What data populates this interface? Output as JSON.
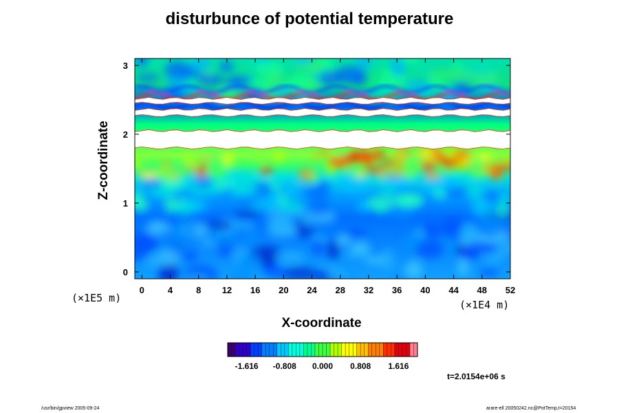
{
  "chart_data": {
    "type": "heatmap",
    "title": "disturbunce of potential temperature",
    "xlabel": "X-coordinate",
    "ylabel": "Z-coordinate",
    "x_unit": "(×1E4 m)",
    "y_unit": "(×1E5 m)",
    "xlim": [
      -1,
      52
    ],
    "ylim": [
      -0.1,
      3.1
    ],
    "x_ticks": [
      "0",
      "4",
      "8",
      "12",
      "16",
      "20",
      "24",
      "28",
      "32",
      "36",
      "40",
      "44",
      "48",
      "52"
    ],
    "y_ticks": [
      "0",
      "1",
      "2",
      "3"
    ],
    "colorbar": {
      "ticks": [
        "-1.616",
        "-0.808",
        "0.000",
        "0.808",
        "1.616"
      ],
      "colors": [
        "#3a0070",
        "#2f00c8",
        "#0040ff",
        "#0080ff",
        "#00c8ff",
        "#00ffe0",
        "#00ff90",
        "#40ff40",
        "#b0ff00",
        "#ffff00",
        "#ffc000",
        "#ff8000",
        "#ff3000",
        "#e00010",
        "#ff8090"
      ]
    },
    "time_label": "t=2.0154e+06 s"
  },
  "footer": {
    "left": "/usr/bin/gpview 2005-09-24",
    "right": "arare-ell 20050242.nc@PotTemp,t=20154"
  },
  "white_bands": [
    {
      "z_from": 1.8,
      "z_to": 2.05
    },
    {
      "z_from": 2.27,
      "z_to": 2.36
    },
    {
      "z_from": 2.45,
      "z_to": 2.52
    }
  ]
}
